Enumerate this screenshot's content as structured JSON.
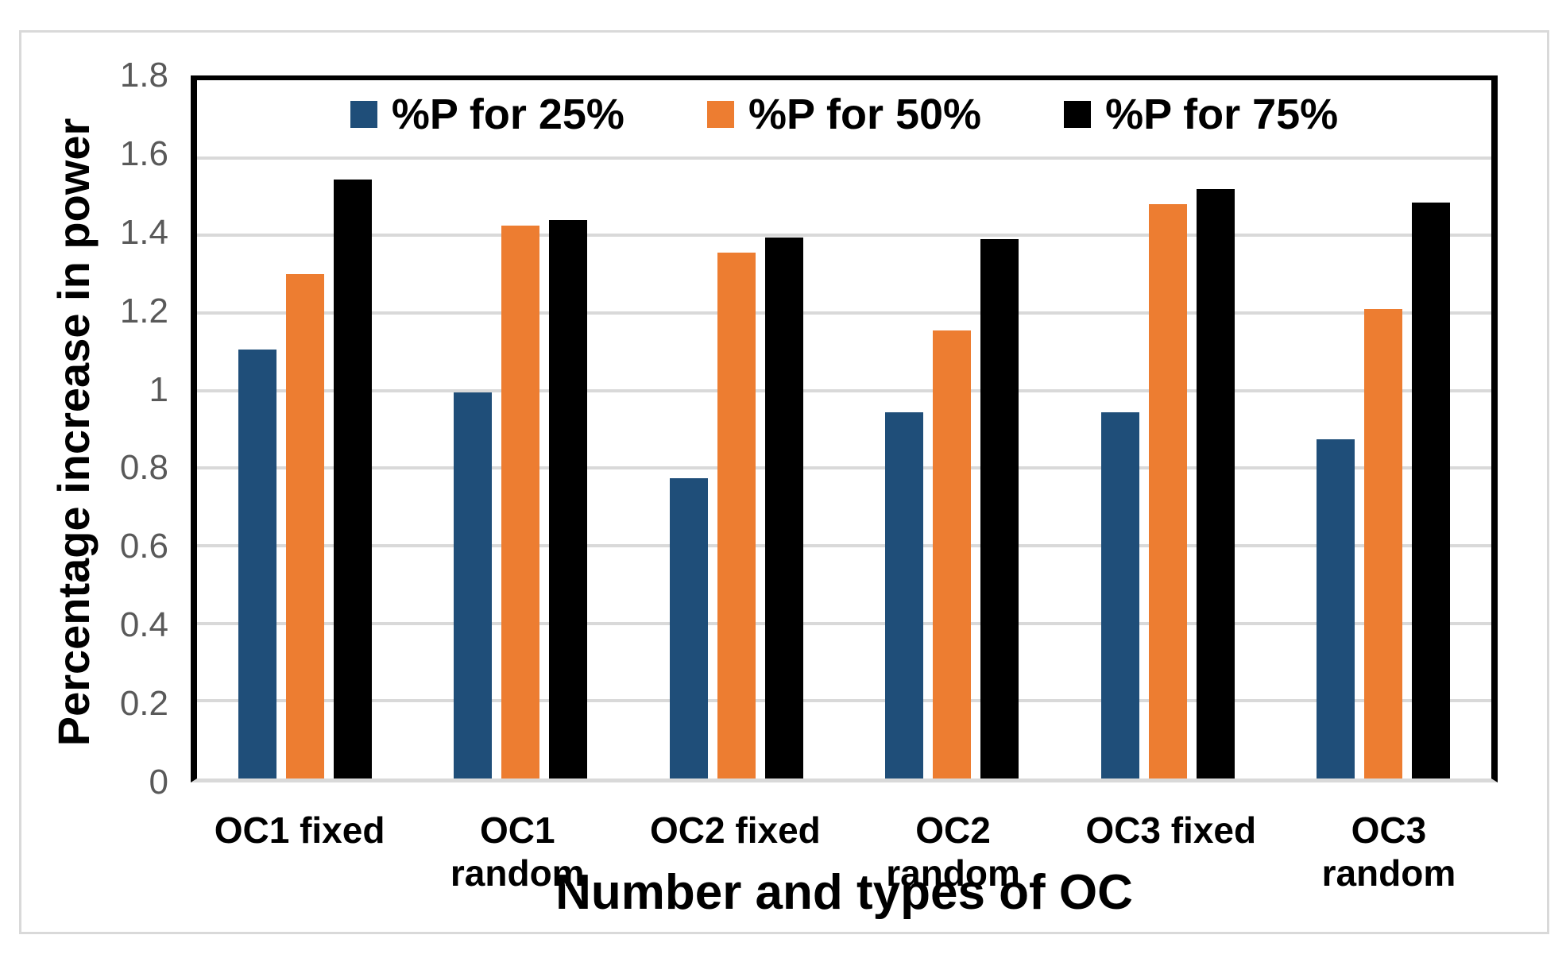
{
  "frame": {
    "border_color": "#D9D9D9",
    "background": "#FFFFFF"
  },
  "chart_data": {
    "type": "bar",
    "title": "",
    "xlabel": "Number and types of OC",
    "ylabel": "Percentage increase in power",
    "ylim": [
      0,
      1.8
    ],
    "grid": true,
    "legend_position": "top-center-inside",
    "axis_style": {
      "tick_label_color": "#595959",
      "gridline_color": "#D9D9D9",
      "plot_border_color": "#000000",
      "baseline_color": "#D9D9D9"
    },
    "ytick_values": [
      0,
      0.2,
      0.4,
      0.6,
      0.8,
      1,
      1.2,
      1.4,
      1.6,
      1.8
    ],
    "ytick_labels": [
      "0",
      "0.2",
      "0.4",
      "0.6",
      "0.8",
      "1",
      "1.2",
      "1.4",
      "1.6",
      "1.8"
    ],
    "categories": [
      "OC1 fixed",
      "OC1 random",
      "OC2 fixed",
      "OC2 random",
      "OC3 fixed",
      "OC3 random"
    ],
    "series": [
      {
        "name": "%P for 25%",
        "color": "#1F4E79",
        "values": [
          1.105,
          0.995,
          0.775,
          0.945,
          0.945,
          0.875
        ]
      },
      {
        "name": "%P for 50%",
        "color": "#ED7D31",
        "values": [
          1.3,
          1.425,
          1.355,
          1.155,
          1.48,
          1.21
        ]
      },
      {
        "name": "%P for 75%",
        "color": "#000000",
        "values": [
          1.545,
          1.44,
          1.395,
          1.39,
          1.52,
          1.485
        ]
      }
    ]
  }
}
